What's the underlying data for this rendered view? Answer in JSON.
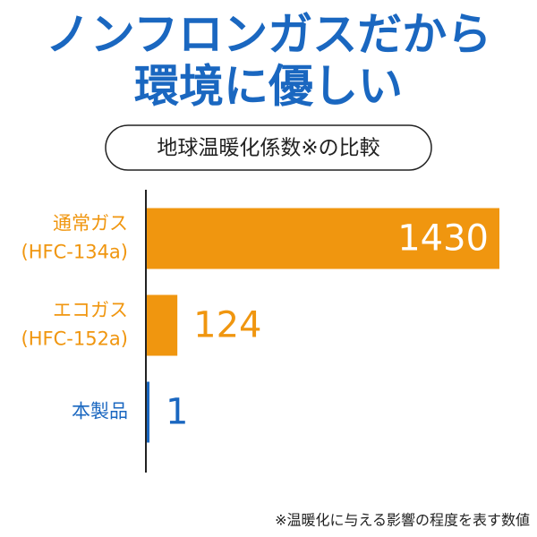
{
  "chart_data": {
    "type": "bar",
    "orientation": "horizontal",
    "title": [
      "ノンフロンガスだから",
      "環境に優しい"
    ],
    "subtitle": "地球温暖化係数※の比較",
    "categories": [
      [
        "通常ガス",
        "(HFC-134a)"
      ],
      [
        "エコガス",
        "(HFC-152a)"
      ],
      [
        "本製品"
      ]
    ],
    "values": [
      1430,
      124,
      1
    ],
    "colors": [
      "#f0960f",
      "#f0960f",
      "#1a67c0"
    ],
    "footnote": "※温暖化に与える影響の程度を表す数値"
  }
}
